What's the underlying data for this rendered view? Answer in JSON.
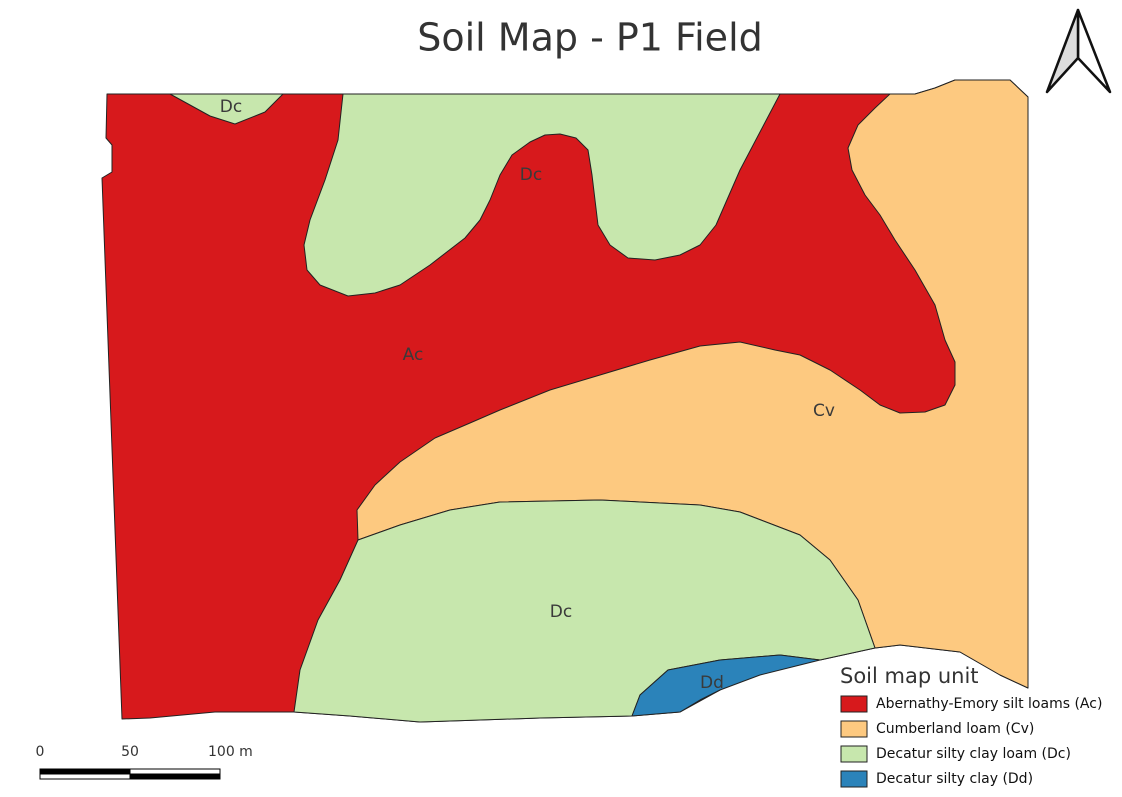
{
  "title": "Soil Map - P1 Field",
  "map_labels": [
    "Dc",
    "Dc",
    "Ac",
    "Cv",
    "Dc",
    "Dd"
  ],
  "legend": {
    "title": "Soil map unit",
    "items": [
      {
        "label": "Abernathy-Emory silt loams (Ac)",
        "color": "#d7191c"
      },
      {
        "label": "Cumberland loam (Cv)",
        "color": "#fdc980"
      },
      {
        "label": "Decatur silty clay loam (Dc)",
        "color": "#c7e7ad"
      },
      {
        "label": "Decatur silty clay (Dd)",
        "color": "#2b83ba"
      }
    ]
  },
  "scale_bar": {
    "labels": [
      "0",
      "50",
      "100 m"
    ]
  }
}
